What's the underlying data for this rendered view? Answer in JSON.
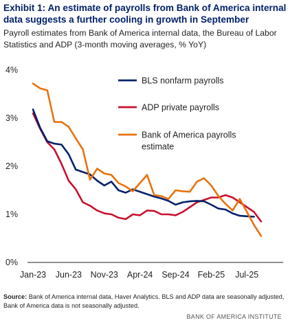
{
  "header": {
    "title": "Exhibit 1: An estimate of payrolls from Bank of America internal data suggests a further cooling in growth in September",
    "subtitle": "Payroll estimates from Bank of America internal data, the Bureau of Labor Statistics and ADP (3-month moving averages, % YoY)"
  },
  "footer": {
    "source_label": "Source:",
    "source_text": "Bank of America internal data, Haver Analytics. BLS and ADP data are seasonally adjusted, Bank of America data is not seasonally adjusted.",
    "brand": "BANK OF AMERICA INSTITUTE"
  },
  "colors": {
    "bls": "#012169",
    "adp": "#c8102e",
    "boa": "#e8720c",
    "axis": "#231f20",
    "title": "#012169"
  },
  "chart_data": {
    "type": "line",
    "title": "",
    "xlabel": "",
    "ylabel": "",
    "ylim": [
      0,
      4
    ],
    "yticks": [
      0,
      1,
      2,
      3,
      4
    ],
    "ytick_labels": [
      "0%",
      "1%",
      "2%",
      "3%",
      "4%"
    ],
    "xticks": [
      "Jan-23",
      "Jun-23",
      "Nov-23",
      "Apr-24",
      "Sep-24",
      "Feb-25",
      "Jul-25"
    ],
    "grid": false,
    "legend": "top-right",
    "x": [
      "Jan-23",
      "Feb-23",
      "Mar-23",
      "Apr-23",
      "May-23",
      "Jun-23",
      "Jul-23",
      "Aug-23",
      "Sep-23",
      "Oct-23",
      "Nov-23",
      "Dec-23",
      "Jan-24",
      "Feb-24",
      "Mar-24",
      "Apr-24",
      "May-24",
      "Jun-24",
      "Jul-24",
      "Aug-24",
      "Sep-24",
      "Oct-24",
      "Nov-24",
      "Dec-24",
      "Jan-25",
      "Feb-25",
      "Mar-25",
      "Apr-25",
      "May-25",
      "Jun-25",
      "Jul-25",
      "Aug-25",
      "Sep-25"
    ],
    "series": [
      {
        "name": "BLS nonfarm payrolls",
        "color_key": "bls",
        "values": [
          3.18,
          2.8,
          2.52,
          2.47,
          2.45,
          2.25,
          1.93,
          1.88,
          1.83,
          1.7,
          1.6,
          1.68,
          1.5,
          1.45,
          1.52,
          1.47,
          1.42,
          1.37,
          1.33,
          1.28,
          1.2,
          1.25,
          1.27,
          1.28,
          1.27,
          1.2,
          1.12,
          1.1,
          1.02,
          0.97,
          0.96,
          0.95,
          null
        ]
      },
      {
        "name": "ADP private payrolls",
        "color_key": "adp",
        "values": [
          3.1,
          2.78,
          2.5,
          2.35,
          2.05,
          1.7,
          1.52,
          1.25,
          1.18,
          1.08,
          1.02,
          1.0,
          0.93,
          0.9,
          1.0,
          0.98,
          1.08,
          1.07,
          1.0,
          1.0,
          0.98,
          1.05,
          1.15,
          1.25,
          1.3,
          1.35,
          1.35,
          1.4,
          1.35,
          1.25,
          1.15,
          1.05,
          0.85
        ]
      },
      {
        "name": "Bank of America payrolls estimate",
        "color_key": "boa",
        "values": [
          3.72,
          3.62,
          3.58,
          2.92,
          2.92,
          2.82,
          2.58,
          2.35,
          1.72,
          1.95,
          1.85,
          1.82,
          1.65,
          1.58,
          1.48,
          1.65,
          1.82,
          1.4,
          1.38,
          1.32,
          1.5,
          1.48,
          1.47,
          1.68,
          1.75,
          1.6,
          1.38,
          1.22,
          1.08,
          1.32,
          1.05,
          0.78,
          0.55
        ]
      }
    ],
    "legend_labels": {
      "bls": "BLS nonfarm payrolls",
      "adp": "ADP private payrolls",
      "boa_line1": "Bank of America payrolls",
      "boa_line2": "estimate"
    }
  }
}
